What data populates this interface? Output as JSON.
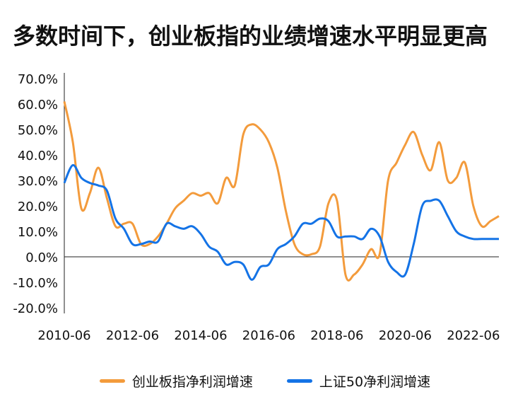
{
  "colors": {
    "orange": "#F39B3C",
    "blue": "#1473E6"
  },
  "chart_data": {
    "type": "line",
    "title": "多数时间下，创业板指的业绩增速水平明显更高",
    "xlabel": "",
    "ylabel": "",
    "x_range": [
      "2010-06",
      "2023-03"
    ],
    "ylim": [
      -20,
      70
    ],
    "y_ticks": [
      "70.0%",
      "60.0%",
      "50.0%",
      "40.0%",
      "30.0%",
      "20.0%",
      "10.0%",
      "0.0%",
      "-10.0%",
      "-20.0%"
    ],
    "y_tick_values": [
      70,
      60,
      50,
      40,
      30,
      20,
      10,
      0,
      -10,
      -20
    ],
    "x_ticks": [
      "2010-06",
      "2012-06",
      "2014-06",
      "2016-06",
      "2018-06",
      "2020-06",
      "2022-06"
    ],
    "legend_position": "bottom",
    "grid": false,
    "series": [
      {
        "name": "创业板指净利润增速",
        "color": "#F39B3C",
        "x": [
          "2010-06",
          "2010-09",
          "2010-12",
          "2011-03",
          "2011-06",
          "2011-09",
          "2011-12",
          "2012-03",
          "2012-06",
          "2012-09",
          "2012-12",
          "2013-03",
          "2013-06",
          "2013-09",
          "2013-12",
          "2014-03",
          "2014-06",
          "2014-09",
          "2014-12",
          "2015-03",
          "2015-06",
          "2015-09",
          "2015-12",
          "2016-03",
          "2016-06",
          "2016-09",
          "2016-12",
          "2017-03",
          "2017-06",
          "2017-09",
          "2017-12",
          "2018-03",
          "2018-06",
          "2018-09",
          "2018-12",
          "2019-03",
          "2019-06",
          "2019-09",
          "2019-12",
          "2020-03",
          "2020-06",
          "2020-09",
          "2020-12",
          "2021-03",
          "2021-06",
          "2021-09",
          "2021-12",
          "2022-03",
          "2022-06",
          "2022-09",
          "2022-12",
          "2023-03"
        ],
        "values": [
          61,
          45,
          19,
          25,
          35,
          23,
          12,
          13,
          13,
          5,
          5,
          8,
          13,
          19,
          22,
          25,
          24,
          25,
          21,
          31,
          28,
          48,
          52,
          50,
          45,
          35,
          18,
          5,
          1,
          1,
          4,
          21,
          22,
          -7,
          -7,
          -3,
          3,
          1,
          30,
          37,
          44,
          49,
          40,
          34,
          45,
          30,
          31,
          37,
          20,
          12,
          14,
          16
        ]
      },
      {
        "name": "上证50净利润增速",
        "color": "#1473E6",
        "x": [
          "2010-06",
          "2010-09",
          "2010-12",
          "2011-03",
          "2011-06",
          "2011-09",
          "2011-12",
          "2012-03",
          "2012-06",
          "2012-09",
          "2012-12",
          "2013-03",
          "2013-06",
          "2013-09",
          "2013-12",
          "2014-03",
          "2014-06",
          "2014-09",
          "2014-12",
          "2015-03",
          "2015-06",
          "2015-09",
          "2015-12",
          "2016-03",
          "2016-06",
          "2016-09",
          "2016-12",
          "2017-03",
          "2017-06",
          "2017-09",
          "2017-12",
          "2018-03",
          "2018-06",
          "2018-09",
          "2018-12",
          "2019-03",
          "2019-06",
          "2019-09",
          "2019-12",
          "2020-03",
          "2020-06",
          "2020-09",
          "2020-12",
          "2021-03",
          "2021-06",
          "2021-09",
          "2021-12",
          "2022-03",
          "2022-06",
          "2022-09",
          "2022-12",
          "2023-03"
        ],
        "values": [
          29,
          36,
          31,
          29,
          28,
          26,
          15,
          11,
          5,
          5,
          6,
          6,
          13,
          12,
          11,
          12,
          9,
          4,
          2,
          -3,
          -2,
          -3,
          -9,
          -4,
          -3,
          3,
          5,
          8,
          13,
          13,
          15,
          14,
          8,
          8,
          8,
          7,
          11,
          8,
          -2,
          -6,
          -7,
          5,
          20,
          22,
          22,
          16,
          10,
          8,
          7,
          7,
          7,
          7
        ]
      }
    ]
  }
}
